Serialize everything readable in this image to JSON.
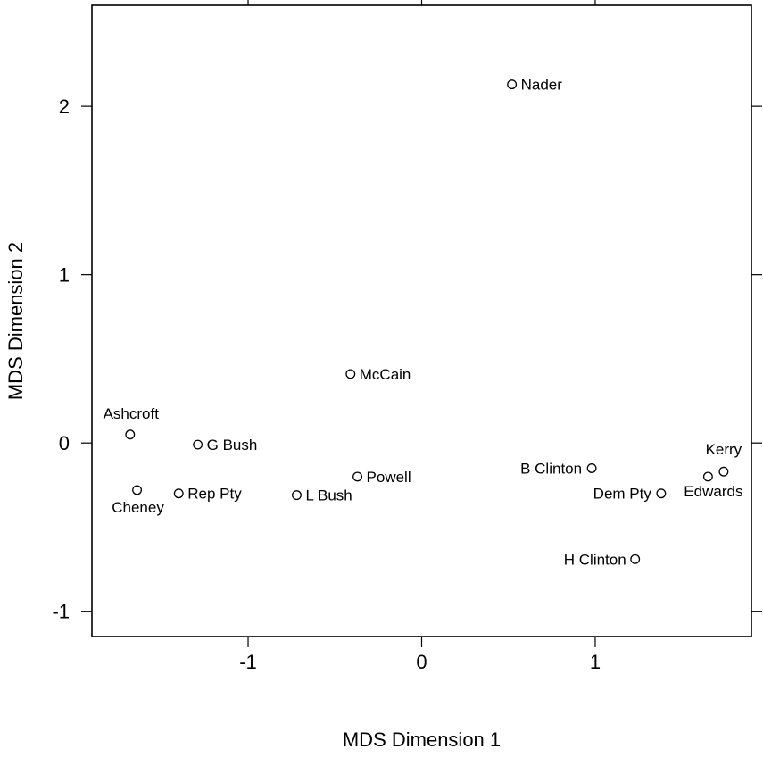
{
  "chart_data": {
    "type": "scatter",
    "title": "",
    "xlabel": "MDS Dimension 1",
    "ylabel": "MDS Dimension 2",
    "xlim": [
      -1.9,
      1.9
    ],
    "ylim": [
      -1.15,
      2.6
    ],
    "x_ticks": [
      -1,
      0,
      1
    ],
    "y_ticks": [
      -1,
      0,
      1,
      2
    ],
    "grid": false,
    "points": [
      {
        "label": "Nader",
        "x": 0.52,
        "y": 2.13
      },
      {
        "label": "McCain",
        "x": -0.41,
        "y": 0.41
      },
      {
        "label": "Ashcroft",
        "x": -1.68,
        "y": 0.05
      },
      {
        "label": "G Bush",
        "x": -1.29,
        "y": -0.01
      },
      {
        "label": "Cheney",
        "x": -1.64,
        "y": -0.28
      },
      {
        "label": "Rep Pty",
        "x": -1.4,
        "y": -0.3
      },
      {
        "label": "L Bush",
        "x": -0.72,
        "y": -0.31
      },
      {
        "label": "Powell",
        "x": -0.37,
        "y": -0.2
      },
      {
        "label": "B Clinton",
        "x": 0.98,
        "y": -0.15
      },
      {
        "label": "Dem Pty",
        "x": 1.38,
        "y": -0.3
      },
      {
        "label": "Edwards",
        "x": 1.65,
        "y": -0.2
      },
      {
        "label": "Kerry",
        "x": 1.74,
        "y": -0.17
      },
      {
        "label": "H Clinton",
        "x": 1.23,
        "y": -0.69
      }
    ]
  }
}
